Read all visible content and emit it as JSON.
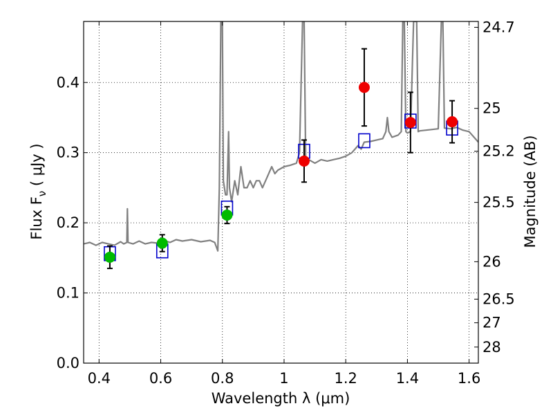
{
  "chart_data": {
    "type": "scatter",
    "xlabel": "Wavelength  λ (μm)",
    "ylabel": "Flux  F",
    "ylabel_sub": "ν",
    "ylabel_unit": " ( μJy )",
    "y2label": "Magnitude (AB)",
    "xlim": [
      0.35,
      1.63
    ],
    "ylim": [
      0.0,
      0.487
    ],
    "grid": true,
    "x_ticks": [
      {
        "value": 0.4,
        "label": "0.4"
      },
      {
        "value": 0.6,
        "label": "0.6"
      },
      {
        "value": 0.8,
        "label": "0.8"
      },
      {
        "value": 1.0,
        "label": "1"
      },
      {
        "value": 1.2,
        "label": "1.2"
      },
      {
        "value": 1.4,
        "label": "1.4"
      },
      {
        "value": 1.6,
        "label": "1.6"
      }
    ],
    "y_ticks": [
      {
        "value": 0.0,
        "label": "0.0"
      },
      {
        "value": 0.1,
        "label": "0.1"
      },
      {
        "value": 0.2,
        "label": "0.2"
      },
      {
        "value": 0.3,
        "label": "0.3"
      },
      {
        "value": 0.4,
        "label": "0.4"
      }
    ],
    "y2_ticks": [
      {
        "value": 24.7,
        "label": "24.7"
      },
      {
        "value": 25.0,
        "label": "25"
      },
      {
        "value": 25.2,
        "label": "25.2"
      },
      {
        "value": 25.5,
        "label": "25.5"
      },
      {
        "value": 26.0,
        "label": "26"
      },
      {
        "value": 26.5,
        "label": "26.5"
      },
      {
        "value": 27.0,
        "label": "27"
      },
      {
        "value": 28.0,
        "label": "28"
      }
    ],
    "series": [
      {
        "kind": "line",
        "color": "#808080",
        "points": [
          [
            0.35,
            0.17
          ],
          [
            0.37,
            0.172
          ],
          [
            0.39,
            0.168
          ],
          [
            0.41,
            0.172
          ],
          [
            0.43,
            0.17
          ],
          [
            0.45,
            0.168
          ],
          [
            0.47,
            0.173
          ],
          [
            0.48,
            0.17
          ],
          [
            0.49,
            0.172
          ],
          [
            0.492,
            0.22
          ],
          [
            0.494,
            0.172
          ],
          [
            0.51,
            0.17
          ],
          [
            0.53,
            0.174
          ],
          [
            0.55,
            0.17
          ],
          [
            0.57,
            0.172
          ],
          [
            0.59,
            0.171
          ],
          [
            0.61,
            0.175
          ],
          [
            0.63,
            0.172
          ],
          [
            0.65,
            0.176
          ],
          [
            0.67,
            0.174
          ],
          [
            0.7,
            0.176
          ],
          [
            0.73,
            0.173
          ],
          [
            0.76,
            0.175
          ],
          [
            0.775,
            0.172
          ],
          [
            0.785,
            0.16
          ],
          [
            0.79,
            0.25
          ],
          [
            0.795,
            0.487
          ],
          [
            0.8,
            0.487
          ],
          [
            0.803,
            0.26
          ],
          [
            0.81,
            0.24
          ],
          [
            0.815,
            0.24
          ],
          [
            0.82,
            0.33
          ],
          [
            0.823,
            0.25
          ],
          [
            0.83,
            0.23
          ],
          [
            0.84,
            0.26
          ],
          [
            0.85,
            0.24
          ],
          [
            0.86,
            0.28
          ],
          [
            0.87,
            0.25
          ],
          [
            0.88,
            0.25
          ],
          [
            0.89,
            0.26
          ],
          [
            0.9,
            0.25
          ],
          [
            0.91,
            0.26
          ],
          [
            0.92,
            0.26
          ],
          [
            0.93,
            0.25
          ],
          [
            0.94,
            0.26
          ],
          [
            0.95,
            0.27
          ],
          [
            0.96,
            0.28
          ],
          [
            0.97,
            0.27
          ],
          [
            0.98,
            0.275
          ],
          [
            1.0,
            0.28
          ],
          [
            1.02,
            0.282
          ],
          [
            1.04,
            0.285
          ],
          [
            1.05,
            0.3
          ],
          [
            1.06,
            0.487
          ],
          [
            1.065,
            0.487
          ],
          [
            1.07,
            0.29
          ],
          [
            1.08,
            0.29
          ],
          [
            1.1,
            0.285
          ],
          [
            1.12,
            0.29
          ],
          [
            1.14,
            0.288
          ],
          [
            1.16,
            0.29
          ],
          [
            1.18,
            0.292
          ],
          [
            1.2,
            0.295
          ],
          [
            1.22,
            0.3
          ],
          [
            1.24,
            0.31
          ],
          [
            1.25,
            0.305
          ],
          [
            1.26,
            0.315
          ],
          [
            1.28,
            0.316
          ],
          [
            1.3,
            0.318
          ],
          [
            1.32,
            0.32
          ],
          [
            1.33,
            0.33
          ],
          [
            1.335,
            0.35
          ],
          [
            1.34,
            0.33
          ],
          [
            1.35,
            0.322
          ],
          [
            1.37,
            0.325
          ],
          [
            1.38,
            0.33
          ],
          [
            1.385,
            0.487
          ],
          [
            1.39,
            0.487
          ],
          [
            1.395,
            0.33
          ],
          [
            1.4,
            0.328
          ],
          [
            1.41,
            0.33
          ],
          [
            1.42,
            0.487
          ],
          [
            1.43,
            0.487
          ],
          [
            1.435,
            0.33
          ],
          [
            1.44,
            0.331
          ],
          [
            1.46,
            0.332
          ],
          [
            1.48,
            0.333
          ],
          [
            1.5,
            0.334
          ],
          [
            1.51,
            0.487
          ],
          [
            1.515,
            0.487
          ],
          [
            1.52,
            0.335
          ],
          [
            1.54,
            0.334
          ],
          [
            1.56,
            0.336
          ],
          [
            1.58,
            0.332
          ],
          [
            1.6,
            0.33
          ],
          [
            1.62,
            0.32
          ],
          [
            1.63,
            0.315
          ]
        ]
      },
      {
        "kind": "open-square",
        "color": "#0000cc",
        "points": [
          [
            0.435,
            0.156
          ],
          [
            0.605,
            0.16
          ],
          [
            0.815,
            0.221
          ],
          [
            1.065,
            0.302
          ],
          [
            1.26,
            0.317
          ],
          [
            1.41,
            0.345
          ],
          [
            1.545,
            0.335
          ]
        ]
      },
      {
        "kind": "filled-circle",
        "color": "#00bb00",
        "points": [
          {
            "x": 0.435,
            "y": 0.151,
            "err": 0.016
          },
          {
            "x": 0.605,
            "y": 0.171,
            "err": 0.012
          },
          {
            "x": 0.815,
            "y": 0.211,
            "err": 0.012
          }
        ]
      },
      {
        "kind": "filled-circle",
        "color": "#ee0000",
        "points": [
          {
            "x": 1.065,
            "y": 0.288,
            "err": 0.03
          },
          {
            "x": 1.26,
            "y": 0.393,
            "err": 0.055
          },
          {
            "x": 1.41,
            "y": 0.343,
            "err": 0.043
          },
          {
            "x": 1.545,
            "y": 0.344,
            "err": 0.03
          }
        ]
      }
    ]
  }
}
